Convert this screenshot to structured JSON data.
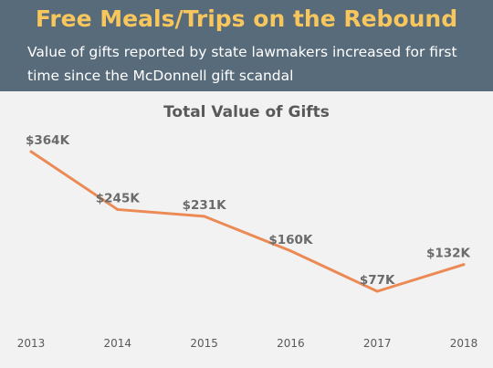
{
  "header": {
    "title": "Free Meals/Trips on the Rebound",
    "subtitle_lines": [
      "Value of gifts reported by state lawmakers increased for first",
      "time since the McDonnell gift scandal"
    ]
  },
  "colors": {
    "header_bg": "#586b7b",
    "title": "#f7c65c",
    "line": "#ec8a55",
    "background": "#f2f2f2"
  },
  "chart_data": {
    "type": "line",
    "title": "Total Value of Gifts",
    "x": [
      "2013",
      "2014",
      "2015",
      "2016",
      "2017",
      "2018"
    ],
    "series": [
      {
        "values": [
          364,
          245,
          231,
          160,
          77,
          132
        ],
        "labels": [
          "$364K",
          "$245K",
          "$231K",
          "$160K",
          "$77K",
          "$132K"
        ]
      }
    ],
    "y_unit": "thousands of dollars",
    "grid": false,
    "legend": "none"
  }
}
